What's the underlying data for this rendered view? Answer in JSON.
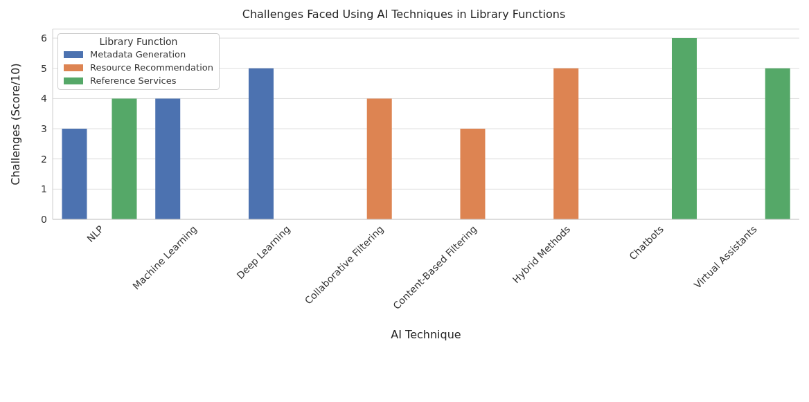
{
  "chart_data": {
    "type": "bar",
    "title": "Challenges Faced Using AI Techniques in Library Functions",
    "xlabel": "AI Technique",
    "ylabel": "Challenges (Score/10)",
    "legend_title": "Library Function",
    "categories": [
      "NLP",
      "Machine Learning",
      "Deep Learning",
      "Collaborative Filtering",
      "Content-Based Filtering",
      "Hybrid Methods",
      "Chatbots",
      "Virtual Assistants"
    ],
    "series": [
      {
        "name": "Metadata Generation",
        "color": "#4c72b0",
        "values": [
          3,
          4,
          5,
          null,
          null,
          null,
          null,
          null
        ]
      },
      {
        "name": "Resource Recommendation",
        "color": "#dd8452",
        "values": [
          null,
          null,
          null,
          4,
          3,
          5,
          null,
          null
        ]
      },
      {
        "name": "Reference Services",
        "color": "#55a868",
        "values": [
          4,
          null,
          null,
          null,
          null,
          null,
          6,
          5
        ]
      }
    ],
    "ylim": [
      0,
      6.3
    ],
    "yticks": [
      0,
      1,
      2,
      3,
      4,
      5,
      6
    ],
    "grid": "y",
    "legend": "top left"
  }
}
